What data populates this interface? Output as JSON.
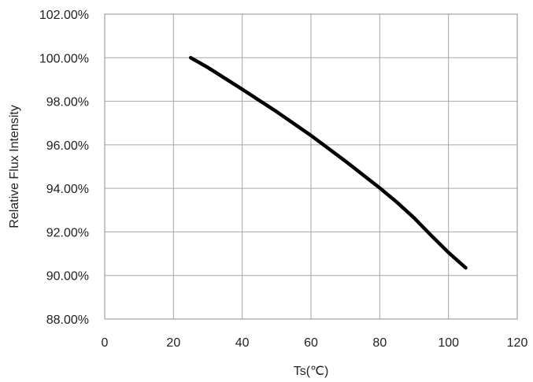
{
  "chart_data": {
    "type": "line",
    "title": "",
    "xlabel": "Ts(℃)",
    "ylabel": "Relative Flux Intensity",
    "xlim": [
      0,
      120
    ],
    "ylim": [
      0.88,
      1.02
    ],
    "x_ticks": [
      0,
      20,
      40,
      60,
      80,
      100,
      120
    ],
    "x_tick_labels": [
      "0",
      "20",
      "40",
      "60",
      "80",
      "100",
      "120"
    ],
    "y_ticks": [
      0.88,
      0.9,
      0.92,
      0.94,
      0.96,
      0.98,
      1.0,
      1.02
    ],
    "y_tick_labels": [
      "88.00%",
      "90.00%",
      "92.00%",
      "94.00%",
      "96.00%",
      "98.00%",
      "100.00%",
      "102.00%"
    ],
    "grid": true,
    "legend": "none",
    "series": [
      {
        "color": "#000000",
        "x": [
          25,
          30,
          40,
          50,
          60,
          70,
          80,
          85,
          90,
          95,
          100,
          105
        ],
        "y": [
          1.0,
          0.9955,
          0.9855,
          0.9752,
          0.9643,
          0.9525,
          0.9402,
          0.9336,
          0.9264,
          0.9183,
          0.9105,
          0.9035
        ]
      }
    ]
  }
}
